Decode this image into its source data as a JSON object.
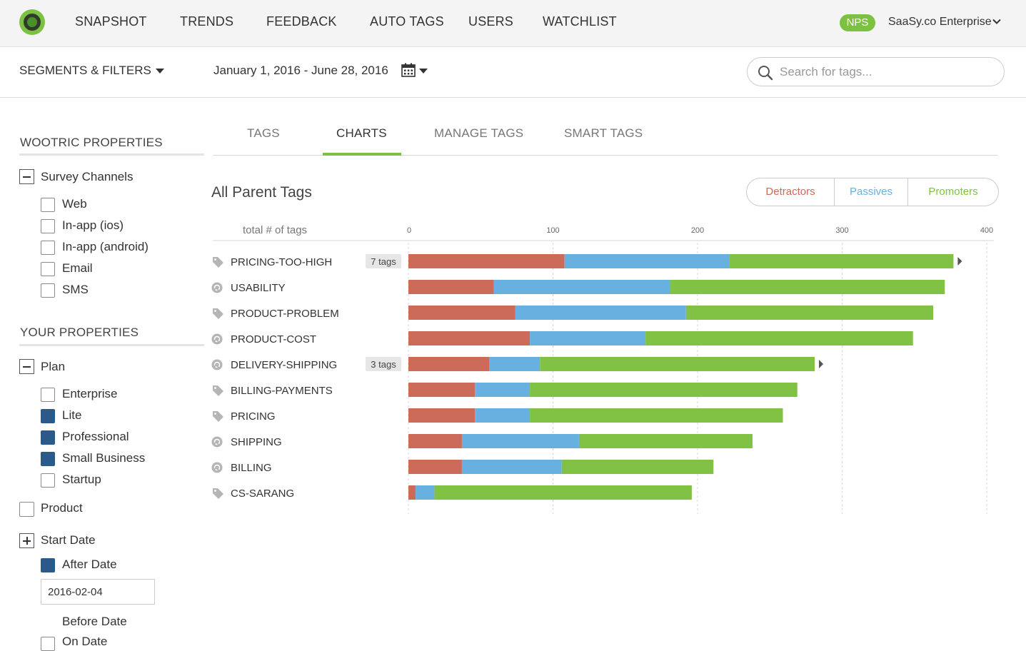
{
  "nav": {
    "items": [
      "SNAPSHOT",
      "TRENDS",
      "FEEDBACK",
      "AUTO TAGS",
      "USERS",
      "WATCHLIST"
    ],
    "nps_badge": "NPS",
    "account": "SaaSy.co Enterprise"
  },
  "filterbar": {
    "segments_label": "SEGMENTS & FILTERS",
    "date_range": "January 1, 2016 - June 28, 2016",
    "search_placeholder": "Search for tags..."
  },
  "sidebar": {
    "wootric_heading": "WOOTRIC PROPERTIES",
    "survey_group": "Survey Channels",
    "survey_channels": [
      {
        "label": "Web",
        "checked": false
      },
      {
        "label": "In-app (ios)",
        "checked": false
      },
      {
        "label": "In-app (android)",
        "checked": false
      },
      {
        "label": "Email",
        "checked": false
      },
      {
        "label": "SMS",
        "checked": false
      }
    ],
    "your_heading": "YOUR PROPERTIES",
    "plan_group": "Plan",
    "plans": [
      {
        "label": "Enterprise",
        "checked": false
      },
      {
        "label": "Lite",
        "checked": true
      },
      {
        "label": "Professional",
        "checked": true
      },
      {
        "label": "Small Business",
        "checked": true
      },
      {
        "label": "Startup",
        "checked": false
      }
    ],
    "product_label": "Product",
    "start_date_group": "Start Date",
    "after_date_label": "After Date",
    "after_date_value": "2016-02-04",
    "before_date_label": "Before Date",
    "on_date_label": "On Date"
  },
  "tabs": [
    "TAGS",
    "CHARTS",
    "MANAGE TAGS",
    "SMART TAGS"
  ],
  "active_tab": "CHARTS",
  "chart_header": {
    "title": "All Parent Tags",
    "filters": [
      "Detractors",
      "Passives",
      "Promoters"
    ]
  },
  "colors": {
    "detractors": "#cc6b59",
    "passives": "#68b0e0",
    "promoters": "#81c244",
    "brand_green": "#7cc142"
  },
  "chart_data": {
    "type": "bar",
    "orientation": "horizontal",
    "stacked": true,
    "xlabel": "total # of tags",
    "xlim": [
      0,
      400
    ],
    "xticks": [
      0,
      100,
      200,
      300,
      400
    ],
    "grid": true,
    "categories": [
      "PRICING-TOO-HIGH",
      "USABILITY",
      "PRODUCT-PROBLEM",
      "PRODUCT-COST",
      "DELIVERY-SHIPPING",
      "BILLING-PAYMENTS",
      "PRICING",
      "SHIPPING",
      "BILLING",
      "CS-SARANG"
    ],
    "icons": [
      "tag-icon",
      "smart-tag-icon",
      "tag-icon",
      "smart-tag-icon",
      "smart-tag-icon",
      "tag-icon",
      "tag-icon",
      "smart-tag-icon",
      "smart-tag-icon",
      "tag-icon"
    ],
    "child_counts": [
      "7 tags",
      "",
      "",
      "",
      "3 tags",
      "",
      "",
      "",
      "",
      ""
    ],
    "expandable": [
      true,
      false,
      false,
      false,
      true,
      false,
      false,
      false,
      false,
      false
    ],
    "series": [
      {
        "name": "Detractors",
        "values": [
          108,
          59,
          74,
          84,
          56,
          46,
          46,
          37,
          37,
          5
        ]
      },
      {
        "name": "Passives",
        "values": [
          114,
          122,
          118,
          80,
          35,
          38,
          38,
          81,
          69,
          13
        ]
      },
      {
        "name": "Promoters",
        "values": [
          155,
          190,
          171,
          185,
          190,
          185,
          175,
          120,
          105,
          178
        ]
      }
    ]
  }
}
